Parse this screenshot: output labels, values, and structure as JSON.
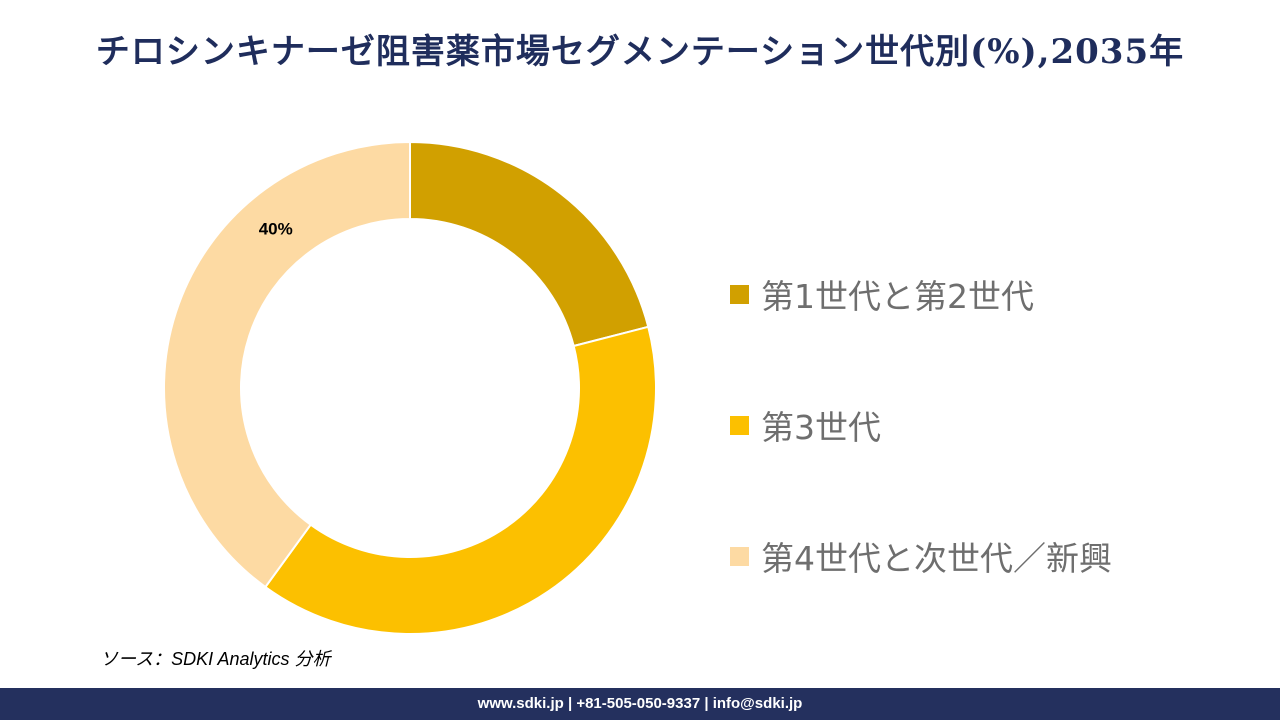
{
  "title": "チロシンキナーゼ阻害薬市場セグメンテーション世代別(%),2035年",
  "chart_data": {
    "type": "pie",
    "style": "donut",
    "categories": [
      "第1世代と第2世代",
      "第3世代",
      "第4世代と次世代／新興"
    ],
    "values": [
      21,
      39,
      40
    ],
    "data_labels": [
      "",
      "",
      "40%"
    ],
    "colors": [
      "#d1a000",
      "#fcc000",
      "#fddaa3"
    ],
    "legend_position": "right"
  },
  "source": "ソース：SDKI Analytics 分析",
  "footer": "www.sdki.jp | +81-505-050-9337 | info@sdki.jp"
}
